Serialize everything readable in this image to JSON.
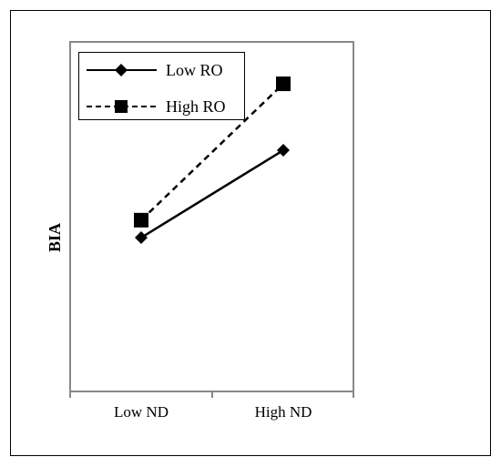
{
  "chart_data": {
    "type": "line",
    "title": "",
    "xlabel": "",
    "ylabel": "BIA",
    "categories": [
      "Low ND",
      "High ND"
    ],
    "ylim": [
      0,
      10
    ],
    "grid": false,
    "legend_position": "top-left",
    "y_ticks_shown": false,
    "series": [
      {
        "name": "Low RO",
        "values": [
          4.4,
          6.9
        ],
        "line_style": "solid",
        "marker": "diamond",
        "color": "#000000"
      },
      {
        "name": "High RO",
        "values": [
          4.9,
          8.8
        ],
        "line_style": "dashed",
        "marker": "square",
        "color": "#000000"
      }
    ]
  }
}
